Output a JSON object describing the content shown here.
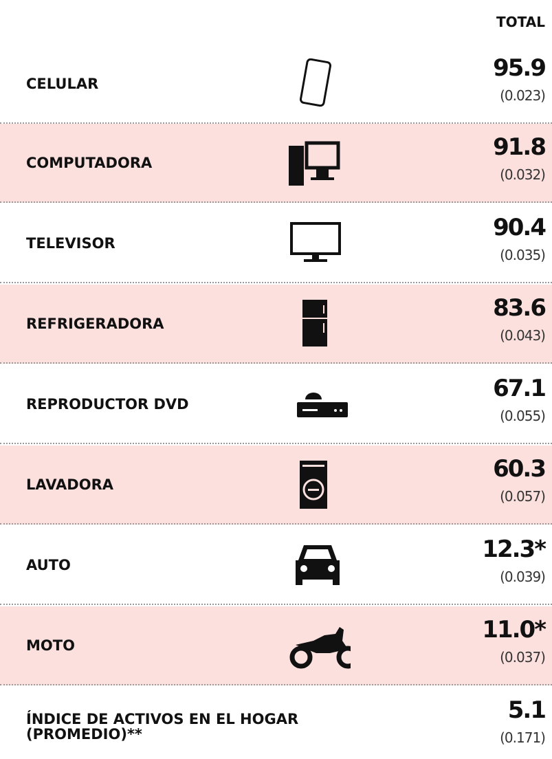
{
  "header": {
    "total": "TOTAL"
  },
  "rows": [
    {
      "label": "CELULAR",
      "value": "95.9",
      "se": "(0.023)"
    },
    {
      "label": "COMPUTADORA",
      "value": "91.8",
      "se": "(0.032)"
    },
    {
      "label": "TELEVISOR",
      "value": "90.4",
      "se": "(0.035)"
    },
    {
      "label": "REFRIGERADORA",
      "value": "83.6",
      "se": "(0.043)"
    },
    {
      "label": "REPRODUCTOR DVD",
      "value": "67.1",
      "se": "(0.055)"
    },
    {
      "label": "LAVADORA",
      "value": "60.3",
      "se": "(0.057)"
    },
    {
      "label": "AUTO",
      "value": "12.3*",
      "se": "(0.039)"
    },
    {
      "label": "MOTO",
      "value": "11.0*",
      "se": "(0.037)"
    },
    {
      "label": "ÍNDICE DE ACTIVOS EN EL HOGAR (PROMEDIO)**",
      "value": "5.1",
      "se": "(0.171)"
    }
  ]
}
